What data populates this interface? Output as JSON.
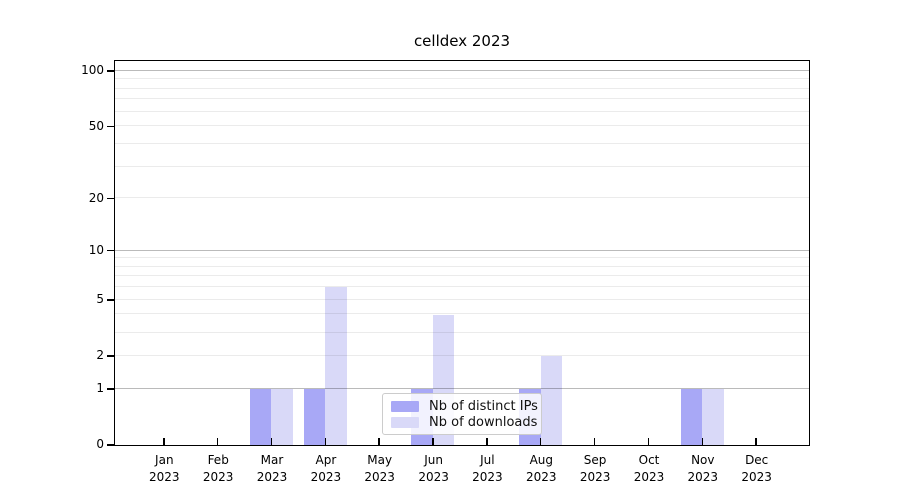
{
  "title": "celldex 2023",
  "chart_data": {
    "type": "bar",
    "title": "celldex 2023",
    "categories": [
      "Jan",
      "Feb",
      "Mar",
      "Apr",
      "May",
      "Jun",
      "Jul",
      "Aug",
      "Sep",
      "Oct",
      "Nov",
      "Dec"
    ],
    "category_year": "2023",
    "series": [
      {
        "name": "Nb of distinct IPs",
        "color": "#a8a8f6",
        "values": [
          0,
          0,
          1,
          1,
          0,
          1,
          0,
          1,
          0,
          0,
          1,
          0
        ]
      },
      {
        "name": "Nb of downloads",
        "color": "#d9d9f8",
        "values": [
          0,
          0,
          1,
          6,
          0,
          4,
          0,
          2,
          0,
          0,
          1,
          0
        ]
      }
    ],
    "yscale": "log1p",
    "ylim": [
      0,
      113
    ],
    "yticks": [
      0,
      1,
      2,
      5,
      10,
      20,
      50,
      100
    ],
    "major_gridlines": [
      1,
      10,
      100
    ],
    "minor_gridlines": [
      2,
      3,
      4,
      5,
      6,
      7,
      8,
      9,
      20,
      30,
      40,
      50,
      60,
      70,
      80,
      90
    ],
    "grid": true,
    "legend_position": "lower-right-inside",
    "xlabel": "",
    "ylabel": ""
  },
  "colors": {
    "background": "#ffffff",
    "axis": "#000000",
    "major_grid": "rgba(0,0,0,0.27)",
    "minor_grid": "rgba(0,0,0,0.08)",
    "legend_border": "#cccccc",
    "legend_background": "rgba(255,255,255,0.85)",
    "bar_distinct_ips": "#a8a8f6",
    "bar_downloads": "#d9d9f8"
  }
}
